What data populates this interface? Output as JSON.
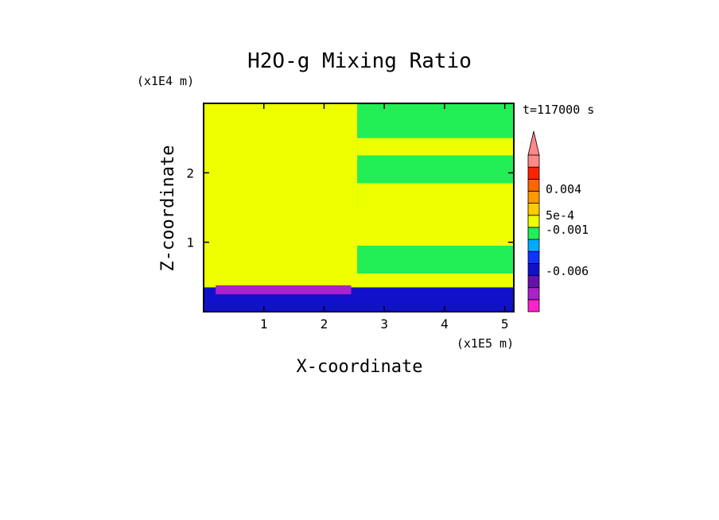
{
  "chart_data": {
    "type": "heatmap",
    "title": "H2O-g Mixing Ratio",
    "xlabel": "X-coordinate",
    "ylabel": "Z-coordinate",
    "x_unit": "(x1E5 m)",
    "y_unit": "(x1E4 m)",
    "time_label": "t=117000 s",
    "xlim": [
      0,
      5.15
    ],
    "ylim": [
      0,
      3.0
    ],
    "x_ticks": [
      "1",
      "2",
      "3",
      "4",
      "5"
    ],
    "x_tick_values": [
      1,
      2,
      3,
      4,
      5
    ],
    "y_ticks": [
      "1",
      "2"
    ],
    "y_tick_values": [
      1,
      2
    ],
    "colorbar": {
      "colors": [
        "#ff22cc",
        "#aa22cc",
        "#6611aa",
        "#1111cc",
        "#1133ff",
        "#00aaff",
        "#22ee55",
        "#eeff00",
        "#ffcc00",
        "#ff9900",
        "#ff6600",
        "#ff2200",
        "#ff8888"
      ],
      "labels": [
        "0.004",
        "5e-4",
        "-0.001",
        "-0.006"
      ],
      "extend": "max"
    },
    "regions": [
      {
        "x0": 0,
        "x1": 2.55,
        "y0": 0,
        "y1": 3.0,
        "level": "#eeff00"
      },
      {
        "x0": 2.55,
        "x1": 5.15,
        "y0": 1.5,
        "y1": 3.0,
        "level": "#22ee55"
      },
      {
        "x0": 2.55,
        "x1": 5.15,
        "y0": 1.5,
        "y1": 1.85,
        "level": "#eeff00"
      },
      {
        "x0": 2.55,
        "x1": 5.15,
        "y0": 2.25,
        "y1": 2.5,
        "level": "#eeff00"
      },
      {
        "x0": 2.55,
        "x1": 5.15,
        "y0": 0.2,
        "y1": 1.5,
        "level": "#eeff00"
      },
      {
        "x0": 2.55,
        "x1": 5.15,
        "y0": 0.55,
        "y1": 0.95,
        "level": "#22ee55"
      },
      {
        "x0": 0,
        "x1": 5.15,
        "y0": 0,
        "y1": 0.35,
        "level": "#1111cc"
      },
      {
        "x0": 0.2,
        "x1": 2.45,
        "y0": 0.25,
        "y1": 0.38,
        "level": "#aa22cc"
      }
    ]
  }
}
